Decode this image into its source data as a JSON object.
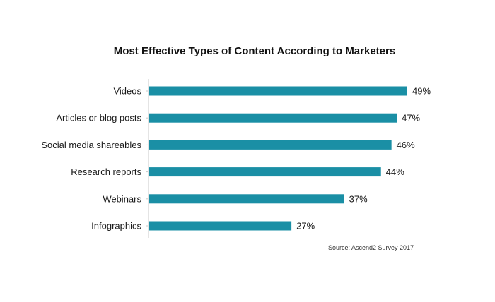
{
  "chart_data": {
    "type": "bar",
    "orientation": "horizontal",
    "title": "Most Effective Types of Content According to Marketers",
    "categories": [
      "Videos",
      "Articles or blog posts",
      "Social media shareables",
      "Research reports",
      "Webinars",
      "Infographics"
    ],
    "values": [
      49,
      47,
      46,
      44,
      37,
      27
    ],
    "value_labels": [
      "49%",
      "47%",
      "46%",
      "44%",
      "37%",
      "27%"
    ],
    "unit": "%",
    "xlim": [
      0,
      49
    ],
    "bar_color": "#1a8fa5",
    "axis_color": "#c8c8c8",
    "grid": false,
    "legend": "none",
    "source": "Source: Ascend2 Survey 2017"
  }
}
